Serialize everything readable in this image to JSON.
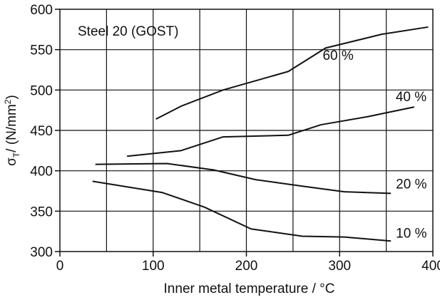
{
  "chart_data": {
    "type": "line",
    "title": "",
    "xlabel": "Inner metal temperature / °C",
    "ylabel": {
      "main": "σ",
      "sub": "T",
      "rest": "/ (N/mm",
      "sup": "2",
      "close": ")"
    },
    "xlim": [
      0,
      400
    ],
    "ylim": [
      300,
      600
    ],
    "xticks": [
      "0",
      "100",
      "200",
      "300",
      "400"
    ],
    "yticks": [
      "300",
      "350",
      "400",
      "450",
      "500",
      "550",
      "600"
    ],
    "grid": true,
    "annotation": "Steel 20 (GOST)",
    "colors": {
      "line": "#111111",
      "grid": "#111111",
      "background": "#ffffff"
    },
    "series": [
      {
        "name": "60 %",
        "x": [
          103,
          130,
          175,
          245,
          285,
          345,
          395
        ],
        "y": [
          464,
          480,
          500,
          523,
          552,
          569,
          578
        ]
      },
      {
        "name": "40 %",
        "x": [
          72,
          130,
          175,
          245,
          280,
          330,
          380
        ],
        "y": [
          418,
          425,
          442,
          444,
          457,
          467,
          479
        ]
      },
      {
        "name": "20 %",
        "x": [
          38,
          115,
          165,
          210,
          260,
          305,
          355
        ],
        "y": [
          408,
          409,
          401,
          389,
          381,
          374,
          372
        ]
      },
      {
        "name": "10 %",
        "x": [
          35,
          110,
          155,
          205,
          260,
          305,
          355
        ],
        "y": [
          387,
          373,
          355,
          328,
          319,
          318,
          313
        ]
      }
    ]
  }
}
